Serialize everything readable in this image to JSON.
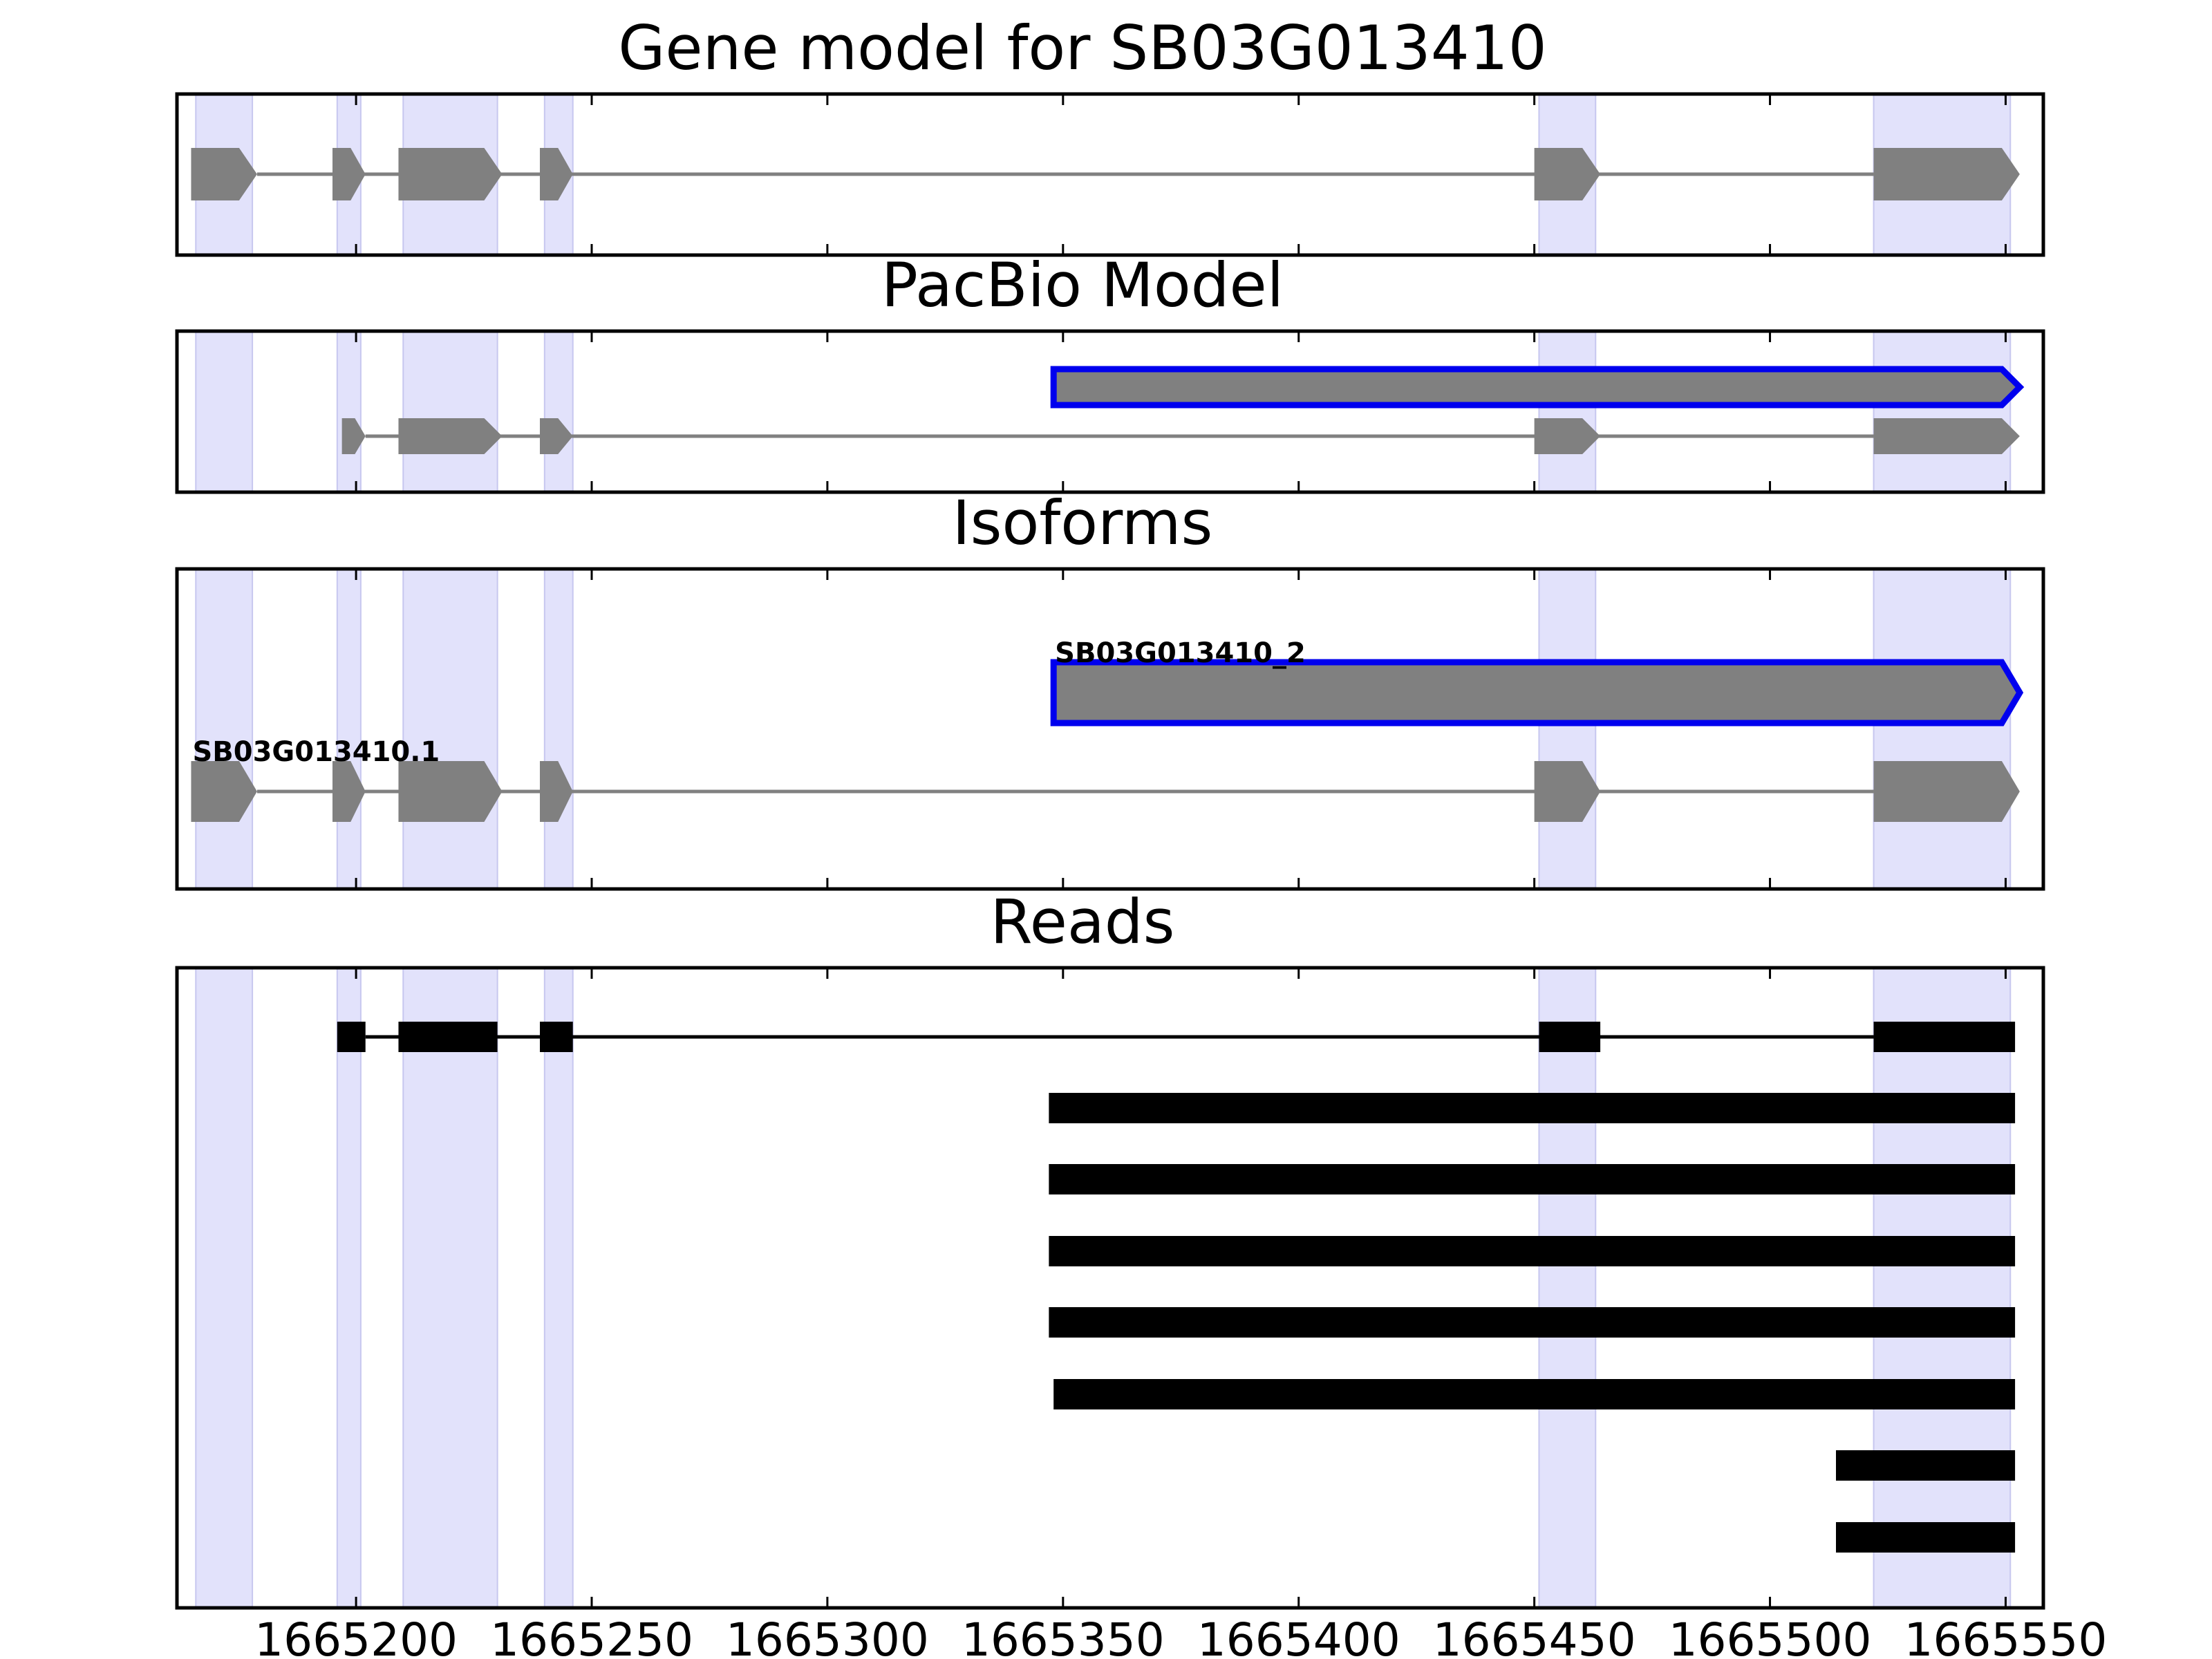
{
  "chart_data": {
    "type": "gene-structure",
    "x_ticks": [
      1665200,
      1665250,
      1665300,
      1665350,
      1665400,
      1665450,
      1665500,
      1665550
    ],
    "x_tick_labels": [
      "1665200",
      "1665250",
      "1665300",
      "1665350",
      "1665400",
      "1665450",
      "1665500",
      "1665550"
    ],
    "xlim": [
      1665162,
      1665558
    ],
    "highlight_regions": [
      [
        1665166,
        1665178
      ],
      [
        1665196,
        1665201
      ],
      [
        1665210,
        1665230
      ],
      [
        1665240,
        1665246
      ],
      [
        1665451,
        1665463
      ],
      [
        1665522,
        1665551
      ]
    ],
    "panels": [
      {
        "title": "Gene model for SB03G013410",
        "rows": [
          {
            "kind": "gene",
            "exons": [
              [
                1665165,
                1665179
              ],
              [
                1665195,
                1665202
              ],
              [
                1665209,
                1665231
              ],
              [
                1665239,
                1665246
              ],
              [
                1665450,
                1665464
              ],
              [
                1665522,
                1665553
              ]
            ]
          }
        ]
      },
      {
        "title": "PacBio Model",
        "rows": [
          {
            "kind": "gene",
            "highlight": true,
            "exons": [
              [
                1665348,
                1665553
              ]
            ]
          },
          {
            "kind": "gene",
            "exons": [
              [
                1665197,
                1665202
              ],
              [
                1665209,
                1665231
              ],
              [
                1665239,
                1665246
              ],
              [
                1665450,
                1665464
              ],
              [
                1665522,
                1665553
              ]
            ]
          }
        ]
      },
      {
        "title": "Isoforms",
        "rows": [
          {
            "kind": "gene",
            "highlight": true,
            "label": "SB03G013410_2",
            "exons": [
              [
                1665348,
                1665553
              ]
            ]
          },
          {
            "kind": "gene",
            "label": "SB03G013410.1",
            "exons": [
              [
                1665165,
                1665179
              ],
              [
                1665195,
                1665202
              ],
              [
                1665209,
                1665231
              ],
              [
                1665239,
                1665246
              ],
              [
                1665450,
                1665464
              ],
              [
                1665522,
                1665553
              ]
            ]
          }
        ]
      },
      {
        "title": "Reads",
        "rows": [
          {
            "kind": "read",
            "exons": [
              [
                1665196,
                1665202
              ],
              [
                1665209,
                1665230
              ],
              [
                1665239,
                1665246
              ],
              [
                1665451,
                1665464
              ],
              [
                1665522,
                1665552
              ]
            ]
          },
          {
            "kind": "read",
            "exons": [
              [
                1665347,
                1665552
              ]
            ]
          },
          {
            "kind": "read",
            "exons": [
              [
                1665347,
                1665552
              ]
            ]
          },
          {
            "kind": "read",
            "exons": [
              [
                1665347,
                1665552
              ]
            ]
          },
          {
            "kind": "read",
            "exons": [
              [
                1665347,
                1665552
              ]
            ]
          },
          {
            "kind": "read",
            "exons": [
              [
                1665348,
                1665552
              ]
            ]
          },
          {
            "kind": "read",
            "exons": [
              [
                1665514,
                1665552
              ]
            ]
          },
          {
            "kind": "read",
            "exons": [
              [
                1665514,
                1665552
              ]
            ]
          }
        ]
      }
    ],
    "colors": {
      "highlight_fill": "#e2e2fb",
      "highlight_edge": "#c7c7ef",
      "gene_fill": "#808080",
      "intron_line": "#808080",
      "outline_highlight": "#0000ee",
      "read_fill": "#000000",
      "axes": "#000000"
    }
  }
}
